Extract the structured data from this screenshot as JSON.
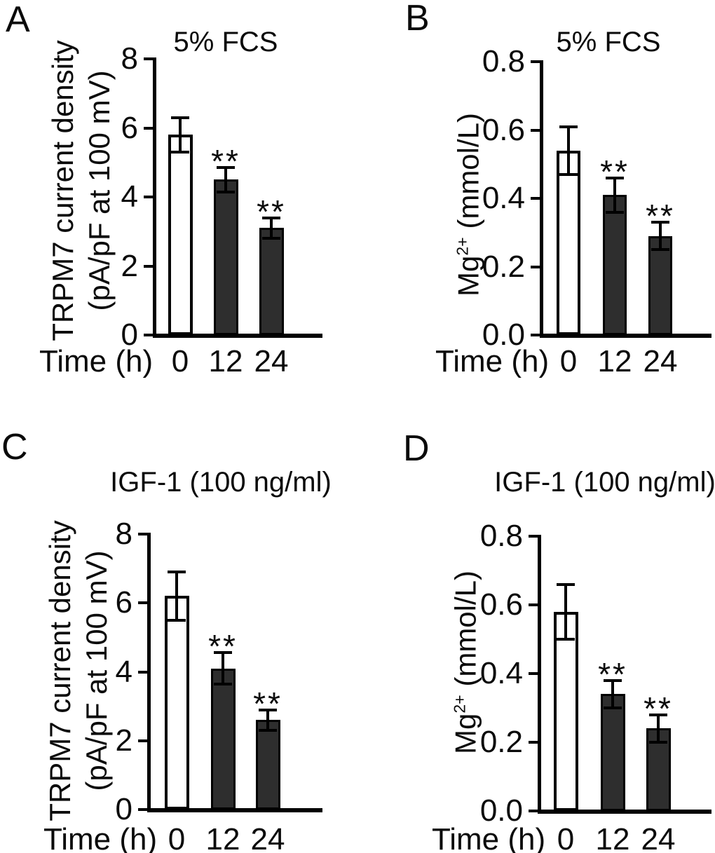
{
  "figure": {
    "background": "#ffffff",
    "colors": {
      "open_bar": "#ffffff",
      "filled_bar": "#2e2e2e",
      "axis_and_text": "#000000"
    },
    "significance_note": "**"
  },
  "chart_data": [
    {
      "letter": "A",
      "type": "bar",
      "title": "5% FCS",
      "xlabel": "Time (h)",
      "ylabel": "TRPM7 current density (pA/pF at 100 mV)",
      "ylabel_lines": [
        [
          {
            "text": "TRPM7 current density"
          }
        ],
        [
          {
            "text": "(pA/pF at 100 mV)"
          }
        ]
      ],
      "categories": [
        "0",
        "12",
        "24"
      ],
      "values": [
        5.8,
        4.5,
        3.1
      ],
      "errors": [
        0.5,
        0.35,
        0.3
      ],
      "significance": [
        "",
        "**",
        "**"
      ],
      "bar_styles": [
        "open",
        "filled",
        "filled"
      ],
      "ylim": [
        0,
        8
      ],
      "yticks": [
        "0",
        "2",
        "4",
        "6",
        "8"
      ],
      "grid": false,
      "legend": "none"
    },
    {
      "letter": "B",
      "type": "bar",
      "title": "5% FCS",
      "xlabel": "Time (h)",
      "ylabel": "Mg2+ (mmol/L)",
      "ylabel_lines": [
        [
          {
            "text": "Mg"
          },
          {
            "text": "2+",
            "sup": true
          },
          {
            "text": " (mmol/L)"
          }
        ]
      ],
      "categories": [
        "0",
        "12",
        "24"
      ],
      "values": [
        0.54,
        0.41,
        0.29
      ],
      "errors": [
        0.07,
        0.05,
        0.04
      ],
      "significance": [
        "",
        "**",
        "**"
      ],
      "bar_styles": [
        "open",
        "filled",
        "filled"
      ],
      "ylim": [
        0,
        0.8
      ],
      "yticks": [
        "0.0",
        "0.2",
        "0.4",
        "0.6",
        "0.8"
      ],
      "grid": false,
      "legend": "none"
    },
    {
      "letter": "C",
      "type": "bar",
      "title": "IGF-1 (100 ng/ml)",
      "xlabel": "Time (h)",
      "ylabel": "TRPM7 current density (pA/pF at 100 mV)",
      "ylabel_lines": [
        [
          {
            "text": "TRPM7 current density"
          }
        ],
        [
          {
            "text": "(pA/pF at 100 mV)"
          }
        ]
      ],
      "categories": [
        "0",
        "12",
        "24"
      ],
      "values": [
        6.2,
        4.1,
        2.6
      ],
      "errors": [
        0.7,
        0.45,
        0.3
      ],
      "significance": [
        "",
        "**",
        "**"
      ],
      "bar_styles": [
        "open",
        "filled",
        "filled"
      ],
      "ylim": [
        0,
        8
      ],
      "yticks": [
        "0",
        "2",
        "4",
        "6",
        "8"
      ],
      "grid": false,
      "legend": "none"
    },
    {
      "letter": "D",
      "type": "bar",
      "title": "IGF-1 (100 ng/ml)",
      "xlabel": "Time (h)",
      "ylabel": "Mg2+ (mmol/L)",
      "ylabel_lines": [
        [
          {
            "text": "Mg"
          },
          {
            "text": "2+",
            "sup": true
          },
          {
            "text": " (mmol/L)"
          }
        ]
      ],
      "categories": [
        "0",
        "12",
        "24"
      ],
      "values": [
        0.58,
        0.34,
        0.24
      ],
      "errors": [
        0.08,
        0.04,
        0.04
      ],
      "significance": [
        "",
        "**",
        "**"
      ],
      "bar_styles": [
        "open",
        "filled",
        "filled"
      ],
      "ylim": [
        0,
        0.8
      ],
      "yticks": [
        "0.0",
        "0.2",
        "0.4",
        "0.6",
        "0.8"
      ],
      "grid": false,
      "legend": "none"
    }
  ]
}
